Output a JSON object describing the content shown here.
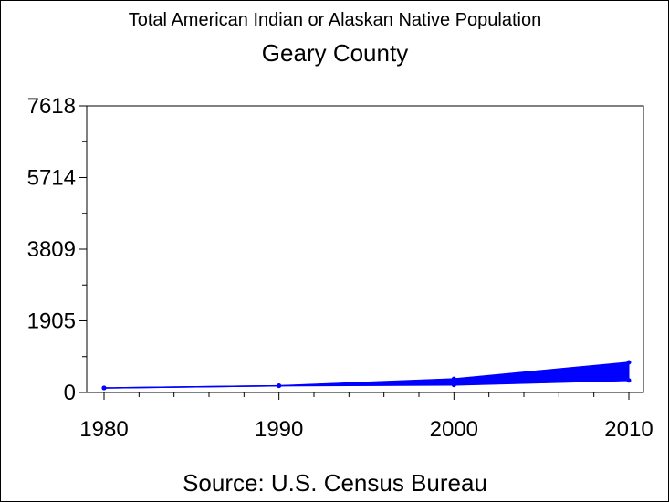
{
  "chart_data": {
    "type": "area",
    "title": "Total American Indian or Alaskan Native Population",
    "subtitle": "Geary County",
    "source": "Source: U.S. Census Bureau",
    "xlabel": "",
    "ylabel": "",
    "x": [
      1980,
      1990,
      2000,
      2010
    ],
    "y_lower": [
      120,
      180,
      200,
      320
    ],
    "y_upper": [
      120,
      180,
      360,
      800
    ],
    "ylim": [
      0,
      7618
    ],
    "xlim": [
      1980,
      2010
    ],
    "y_ticks": [
      0,
      1905,
      3809,
      5714,
      7618
    ],
    "y_tick_labels": [
      "0",
      "1905",
      "3809",
      "5714",
      "7618"
    ],
    "x_ticks": [
      1980,
      1990,
      2000,
      2010
    ],
    "x_tick_labels": [
      "1980",
      "1990",
      "2000",
      "2010"
    ],
    "grid": false,
    "colors": {
      "band": "#0000ff",
      "axis": "#000000"
    }
  }
}
